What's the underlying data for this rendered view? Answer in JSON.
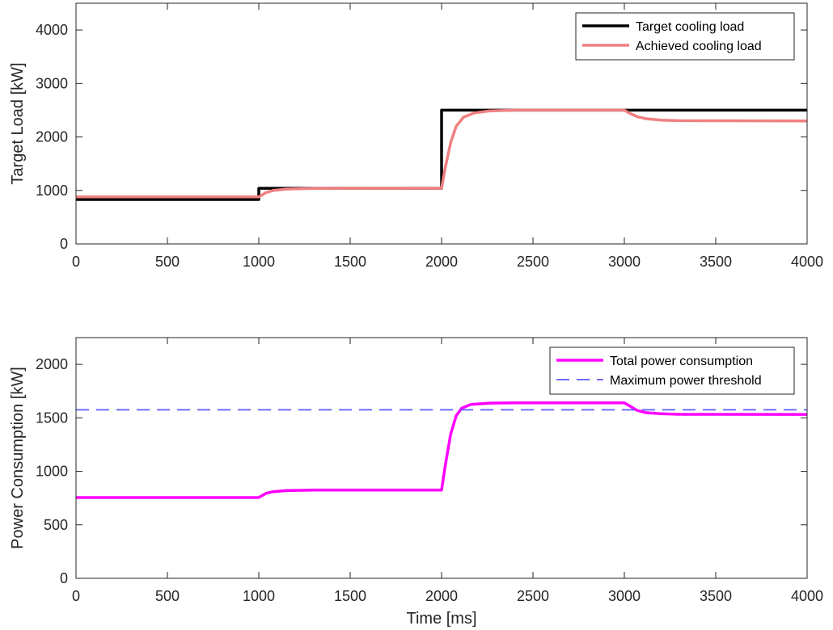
{
  "chart_data": [
    {
      "type": "line",
      "title": "",
      "xlabel": "",
      "ylabel": "Target Load [kW]",
      "xlim": [
        0,
        4000
      ],
      "ylim": [
        0,
        4500
      ],
      "xticks": [
        0,
        500,
        1000,
        1500,
        2000,
        2500,
        3000,
        3500,
        4000
      ],
      "yticks": [
        0,
        1000,
        2000,
        3000,
        4000
      ],
      "grid": false,
      "legend_position": "top-right",
      "series": [
        {
          "name": "Target cooling load",
          "color": "#000000",
          "style": "solid",
          "points": [
            [
              0,
              830
            ],
            [
              1000,
              830
            ],
            [
              1000,
              1040
            ],
            [
              2000,
              1040
            ],
            [
              2000,
              2500
            ],
            [
              4000,
              2500
            ]
          ]
        },
        {
          "name": "Achieved cooling load",
          "color": "#f08080",
          "style": "solid",
          "points": [
            [
              0,
              880
            ],
            [
              1000,
              880
            ],
            [
              1040,
              960
            ],
            [
              1080,
              1000
            ],
            [
              1150,
              1025
            ],
            [
              1300,
              1038
            ],
            [
              2000,
              1040
            ],
            [
              2020,
              1420
            ],
            [
              2050,
              1900
            ],
            [
              2080,
              2200
            ],
            [
              2120,
              2370
            ],
            [
              2180,
              2450
            ],
            [
              2260,
              2485
            ],
            [
              2400,
              2500
            ],
            [
              3000,
              2500
            ],
            [
              3030,
              2440
            ],
            [
              3070,
              2380
            ],
            [
              3120,
              2340
            ],
            [
              3200,
              2315
            ],
            [
              3300,
              2305
            ],
            [
              4000,
              2300
            ]
          ]
        }
      ]
    },
    {
      "type": "line",
      "title": "",
      "xlabel": "Time [ms]",
      "ylabel": "Power Consumption [kW]",
      "xlim": [
        0,
        4000
      ],
      "ylim": [
        0,
        2250
      ],
      "xticks": [
        0,
        500,
        1000,
        1500,
        2000,
        2500,
        3000,
        3500,
        4000
      ],
      "yticks": [
        0,
        500,
        1000,
        1500,
        2000
      ],
      "grid": false,
      "legend_position": "top-right",
      "series": [
        {
          "name": "Total power consumption",
          "color": "#ff00ff",
          "style": "solid",
          "points": [
            [
              0,
              755
            ],
            [
              1000,
              755
            ],
            [
              1040,
              795
            ],
            [
              1080,
              810
            ],
            [
              1150,
              820
            ],
            [
              1300,
              825
            ],
            [
              2000,
              825
            ],
            [
              2020,
              1050
            ],
            [
              2050,
              1350
            ],
            [
              2080,
              1520
            ],
            [
              2110,
              1590
            ],
            [
              2160,
              1625
            ],
            [
              2260,
              1638
            ],
            [
              2400,
              1640
            ],
            [
              3000,
              1640
            ],
            [
              3030,
              1610
            ],
            [
              3070,
              1570
            ],
            [
              3120,
              1548
            ],
            [
              3200,
              1538
            ],
            [
              3300,
              1533
            ],
            [
              4000,
              1532
            ]
          ]
        },
        {
          "name": "Maximum power threshold",
          "color": "#5a5aff",
          "style": "dashed",
          "points": [
            [
              0,
              1575
            ],
            [
              4000,
              1575
            ]
          ]
        }
      ]
    }
  ]
}
